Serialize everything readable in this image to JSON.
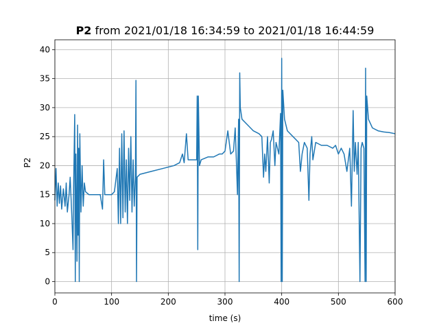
{
  "chart_data": {
    "type": "line",
    "title_parts": [
      "P2",
      "from 2021/01/18 16:34:59 to 2021/01/18 16:44:59"
    ],
    "x_label": "time (s)",
    "y_label": "P2",
    "color": "#1f77b4",
    "grid": true,
    "xlim": [
      0,
      600
    ],
    "ylim": [
      -1.95,
      41.7
    ],
    "xticks": [
      0,
      100,
      200,
      300,
      400,
      500,
      600
    ],
    "yticks": [
      0,
      5,
      10,
      15,
      20,
      25,
      30,
      35,
      40
    ],
    "x": [
      0,
      2,
      4,
      6,
      8,
      10,
      12,
      15,
      18,
      20,
      22,
      25,
      27,
      30,
      32,
      33,
      35,
      36,
      37,
      38,
      39,
      40,
      41,
      42,
      43,
      44,
      46,
      48,
      50,
      52,
      54,
      60,
      70,
      80,
      84,
      86,
      88,
      100,
      105,
      110,
      112,
      114,
      116,
      118,
      120,
      122,
      124,
      126,
      128,
      130,
      132,
      134,
      136,
      138,
      140,
      142,
      143,
      144,
      145,
      150,
      170,
      190,
      210,
      220,
      225,
      228,
      232,
      235,
      240,
      250,
      251,
      252,
      253,
      255,
      258,
      270,
      280,
      290,
      295,
      300,
      305,
      310,
      315,
      318,
      320,
      322,
      323,
      324,
      325,
      326,
      327,
      330,
      340,
      350,
      360,
      365,
      368,
      370,
      372,
      375,
      378,
      380,
      382,
      385,
      388,
      390,
      395,
      398,
      399,
      400,
      401,
      402,
      405,
      410,
      420,
      430,
      433,
      436,
      440,
      445,
      448,
      450,
      453,
      455,
      460,
      470,
      480,
      490,
      495,
      500,
      505,
      510,
      515,
      520,
      523,
      526,
      528,
      530,
      533,
      535,
      538,
      540,
      542,
      545,
      547,
      548,
      549,
      550,
      553,
      560,
      570,
      580,
      590,
      600
    ],
    "values": [
      14,
      19.5,
      13,
      17,
      13.5,
      16.5,
      12.5,
      16,
      13,
      17,
      12,
      15,
      18,
      11,
      5.5,
      16,
      28.8,
      0,
      22,
      13,
      3.5,
      27,
      8,
      23,
      0,
      25.5,
      12,
      20,
      13,
      17,
      15.5,
      15,
      15,
      15,
      12.5,
      21,
      15,
      15,
      15.5,
      19.5,
      10,
      23,
      10,
      25.5,
      11,
      26,
      12,
      21,
      10,
      23,
      14,
      25,
      12,
      21,
      13,
      18,
      34.7,
      0,
      18,
      18.5,
      19,
      19.5,
      20,
      20.5,
      22,
      20.5,
      25.5,
      21,
      21,
      21,
      32,
      5.5,
      32,
      20,
      21,
      21.5,
      21.5,
      22,
      22,
      22.5,
      26,
      22,
      22.5,
      26.5,
      21,
      15,
      22,
      28,
      0,
      36,
      30,
      28,
      27,
      26,
      25.5,
      25,
      18,
      22,
      19,
      25,
      17,
      24,
      24.5,
      26,
      20,
      24,
      22,
      29,
      0,
      38.5,
      0,
      33,
      28,
      26,
      25,
      24,
      19,
      22,
      24,
      23,
      14,
      22,
      25,
      21,
      24,
      23.5,
      23.5,
      23,
      23.5,
      22,
      23,
      22,
      19,
      23,
      13,
      29.5,
      19,
      24,
      18.5,
      24,
      0,
      23,
      24,
      23,
      0,
      36.8,
      0,
      32,
      28,
      26.5,
      26,
      25.8,
      25.7,
      25.5
    ]
  }
}
